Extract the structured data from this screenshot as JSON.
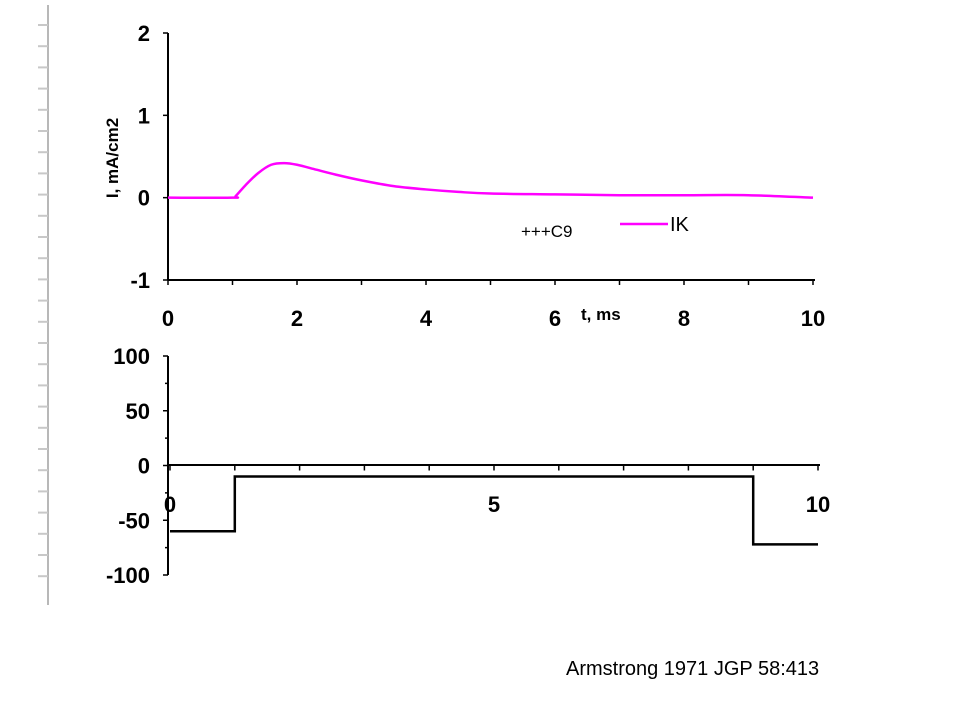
{
  "chart_data": [
    {
      "type": "line",
      "title": "",
      "xlabel": "t, ms",
      "ylabel": "I, mA/cm2",
      "xlim": [
        0,
        10
      ],
      "ylim": [
        -1,
        2
      ],
      "x_ticks": [
        "0",
        "2",
        "4",
        "6",
        "8",
        "10"
      ],
      "y_ticks": [
        "-1",
        "0",
        "1",
        "2"
      ],
      "annotation": "+++C9",
      "legend": "inside-right",
      "grid": false,
      "colors": {
        "IK": "#ff00ff"
      },
      "series": [
        {
          "name": "IK",
          "x": [
            0,
            1,
            1.05,
            1.2,
            1.4,
            1.6,
            1.8,
            2.0,
            2.3,
            2.6,
            3.0,
            3.5,
            4.0,
            4.5,
            5.0,
            6.0,
            7.0,
            8.0,
            9.0,
            10.0
          ],
          "y": [
            0,
            0,
            0.02,
            0.15,
            0.3,
            0.4,
            0.42,
            0.4,
            0.34,
            0.28,
            0.21,
            0.14,
            0.1,
            0.07,
            0.05,
            0.04,
            0.03,
            0.03,
            0.03,
            0.0
          ]
        }
      ]
    },
    {
      "type": "line",
      "title": "",
      "xlabel": "",
      "ylabel": "",
      "xlim": [
        0,
        10
      ],
      "ylim": [
        -100,
        100
      ],
      "x_ticks": [
        "0",
        "5",
        "10"
      ],
      "y_ticks": [
        "-100",
        "-50",
        "0",
        "50",
        "100"
      ],
      "grid": false,
      "colors": {
        "voltage": "#000000"
      },
      "series": [
        {
          "x": [
            0,
            1,
            1,
            9,
            9,
            10
          ],
          "y": [
            -60,
            -60,
            -10,
            -10,
            -72,
            -72
          ]
        }
      ]
    }
  ],
  "citation": "Armstrong 1971 JGP 58:413"
}
